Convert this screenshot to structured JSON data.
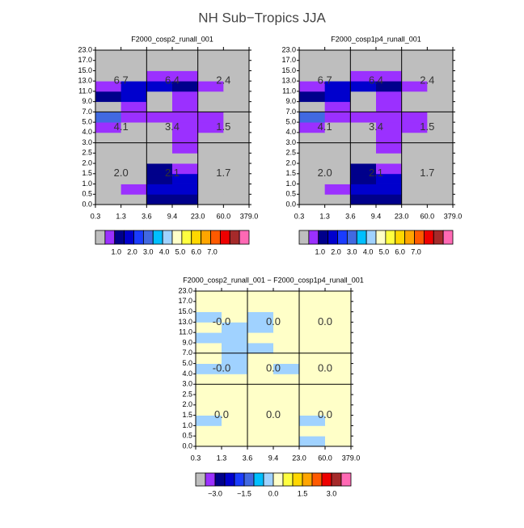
{
  "title": "NH Sub−Tropics JJA",
  "chart_data": [
    {
      "type": "heatmap",
      "title": "F2000_cosp2_runall_001",
      "x_edges": [
        "0.3",
        "1.3",
        "3.6",
        "9.4",
        "23.0",
        "60.0",
        "379.0"
      ],
      "y_edges": [
        "0.0",
        "0.5",
        "1.0",
        "1.5",
        "2.0",
        "2.5",
        "3.0",
        "4.0",
        "5.0",
        "7.0",
        "9.0",
        "11.0",
        "13.0",
        "15.0",
        "17.0",
        "23.0"
      ],
      "values": [
        [
          0.1,
          0.1,
          1.2,
          1.2,
          0.1,
          0.1
        ],
        [
          0.1,
          0.6,
          1.8,
          1.8,
          0.1,
          0.1
        ],
        [
          0.1,
          0.1,
          1.2,
          1.8,
          0.1,
          0.1
        ],
        [
          0.1,
          0.1,
          1.2,
          0.6,
          0.1,
          0.1
        ],
        [
          0.1,
          0.1,
          0.1,
          0.1,
          0.1,
          0.1
        ],
        [
          0.1,
          0.1,
          0.1,
          0.6,
          0.1,
          0.1
        ],
        [
          0.1,
          0.1,
          0.1,
          0.6,
          0.1,
          0.1
        ],
        [
          0.6,
          0.1,
          0.1,
          0.6,
          0.6,
          0.1
        ],
        [
          3.0,
          0.6,
          0.6,
          0.6,
          0.6,
          0.1
        ],
        [
          0.1,
          0.6,
          0.1,
          0.6,
          0.1,
          0.1
        ],
        [
          1.2,
          1.8,
          0.1,
          0.6,
          0.1,
          0.1
        ],
        [
          0.6,
          1.8,
          1.8,
          1.2,
          0.6,
          0.1
        ],
        [
          0.1,
          0.1,
          0.6,
          0.6,
          0.1,
          0.1
        ],
        [
          0.1,
          0.1,
          0.1,
          0.1,
          0.1,
          0.1
        ],
        [
          0.1,
          0.1,
          0.1,
          0.1,
          0.1,
          0.1
        ]
      ],
      "region_labels": [
        [
          "6.7",
          "6.4",
          "2.4"
        ],
        [
          "4.1",
          "3.4",
          "1.5"
        ],
        [
          "2.0",
          "2.1",
          "1.7"
        ]
      ],
      "colorbar": {
        "colors": [
          "#bebebe",
          "#9b30ff",
          "#00008b",
          "#0000cd",
          "#1a3cff",
          "#4169e1",
          "#00bfff",
          "#a0d2ff",
          "#ffffc8",
          "#ffff40",
          "#ffd700",
          "#ffa500",
          "#ff5a00",
          "#ee0000",
          "#a52a2a",
          "#ff69b4"
        ],
        "lim": [
          -0.3,
          9.3
        ],
        "ticks": [
          {
            "value": 1,
            "label": "1.0"
          },
          {
            "value": 2,
            "label": "2.0"
          },
          {
            "value": 3,
            "label": "3.0"
          },
          {
            "value": 4,
            "label": "4.0"
          },
          {
            "value": 5,
            "label": "5.0"
          },
          {
            "value": 6,
            "label": "6.0"
          },
          {
            "value": 7,
            "label": "7.0"
          }
        ]
      }
    },
    {
      "type": "heatmap",
      "title": "F2000_cosp1p4_runall_001",
      "x_edges": [
        "0.3",
        "1.3",
        "3.6",
        "9.4",
        "23.0",
        "60.0",
        "379.0"
      ],
      "y_edges": [
        "0.0",
        "0.5",
        "1.0",
        "1.5",
        "2.0",
        "2.5",
        "3.0",
        "4.0",
        "5.0",
        "7.0",
        "9.0",
        "11.0",
        "13.0",
        "15.0",
        "17.0",
        "23.0"
      ],
      "values": [
        [
          0.1,
          0.1,
          1.2,
          1.2,
          0.1,
          0.1
        ],
        [
          0.1,
          0.6,
          1.8,
          1.8,
          0.1,
          0.1
        ],
        [
          0.1,
          0.1,
          1.2,
          1.8,
          0.1,
          0.1
        ],
        [
          0.1,
          0.1,
          1.2,
          0.6,
          0.1,
          0.1
        ],
        [
          0.1,
          0.1,
          0.1,
          0.1,
          0.1,
          0.1
        ],
        [
          0.1,
          0.1,
          0.1,
          0.6,
          0.1,
          0.1
        ],
        [
          0.1,
          0.1,
          0.1,
          0.6,
          0.1,
          0.1
        ],
        [
          0.6,
          0.1,
          0.1,
          0.6,
          0.6,
          0.1
        ],
        [
          3.0,
          0.6,
          0.6,
          0.6,
          0.6,
          0.1
        ],
        [
          0.1,
          0.6,
          0.1,
          0.6,
          0.1,
          0.1
        ],
        [
          1.2,
          1.8,
          0.1,
          0.6,
          0.1,
          0.1
        ],
        [
          0.6,
          1.8,
          1.8,
          1.2,
          0.6,
          0.1
        ],
        [
          0.1,
          0.1,
          0.6,
          0.6,
          0.1,
          0.1
        ],
        [
          0.1,
          0.1,
          0.1,
          0.1,
          0.1,
          0.1
        ],
        [
          0.1,
          0.1,
          0.1,
          0.1,
          0.1,
          0.1
        ]
      ],
      "region_labels": [
        [
          "6.7",
          "6.4",
          "2.4"
        ],
        [
          "4.1",
          "3.4",
          "1.5"
        ],
        [
          "2.0",
          "2.1",
          "1.7"
        ]
      ],
      "colorbar": {
        "colors": [
          "#bebebe",
          "#9b30ff",
          "#00008b",
          "#0000cd",
          "#1a3cff",
          "#4169e1",
          "#00bfff",
          "#a0d2ff",
          "#ffffc8",
          "#ffff40",
          "#ffd700",
          "#ffa500",
          "#ff5a00",
          "#ee0000",
          "#a52a2a",
          "#ff69b4"
        ],
        "lim": [
          -0.3,
          9.3
        ],
        "ticks": [
          {
            "value": 1,
            "label": "1.0"
          },
          {
            "value": 2,
            "label": "2.0"
          },
          {
            "value": 3,
            "label": "3.0"
          },
          {
            "value": 4,
            "label": "4.0"
          },
          {
            "value": 5,
            "label": "5.0"
          },
          {
            "value": 6,
            "label": "6.0"
          },
          {
            "value": 7,
            "label": "7.0"
          }
        ]
      }
    },
    {
      "type": "heatmap",
      "title": "F2000_cosp2_runall_001 − F2000_cosp1p4_runall_001",
      "x_edges": [
        "0.3",
        "1.3",
        "3.6",
        "9.4",
        "23.0",
        "60.0",
        "379.0"
      ],
      "y_edges": [
        "0.0",
        "0.5",
        "1.0",
        "1.5",
        "2.0",
        "2.5",
        "3.0",
        "4.0",
        "5.0",
        "7.0",
        "9.0",
        "11.0",
        "13.0",
        "15.0",
        "17.0",
        "23.0"
      ],
      "values": [
        [
          0.01,
          0.01,
          0.01,
          0.01,
          -0.01,
          0.01
        ],
        [
          0.01,
          0.01,
          0.01,
          0.01,
          0.01,
          0.01
        ],
        [
          -0.01,
          0.01,
          0.01,
          0.01,
          -0.01,
          0.01
        ],
        [
          0.01,
          0.01,
          0.01,
          0.01,
          0.01,
          0.01
        ],
        [
          0.01,
          0.01,
          0.01,
          0.01,
          0.01,
          0.01
        ],
        [
          0.01,
          0.01,
          0.01,
          0.01,
          0.01,
          0.01
        ],
        [
          0.01,
          0.01,
          0.01,
          0.01,
          0.01,
          0.01
        ],
        [
          -0.01,
          -0.01,
          0.01,
          -0.01,
          0.01,
          0.01
        ],
        [
          0.01,
          -0.01,
          0.01,
          0.01,
          0.01,
          0.01
        ],
        [
          0.01,
          -0.01,
          -0.01,
          0.01,
          0.01,
          0.01
        ],
        [
          -0.01,
          -0.01,
          0.01,
          0.01,
          0.01,
          0.01
        ],
        [
          0.01,
          -0.01,
          -0.01,
          0.01,
          0.01,
          0.01
        ],
        [
          -0.01,
          0.01,
          -0.01,
          0.01,
          0.01,
          0.01
        ],
        [
          0.01,
          0.01,
          0.01,
          0.01,
          0.01,
          0.01
        ],
        [
          0.01,
          0.01,
          0.01,
          0.01,
          0.01,
          0.01
        ]
      ],
      "region_labels": [
        [
          "-0.0",
          "0.0",
          "0.0"
        ],
        [
          "-0.0",
          "0.0",
          "0.0"
        ],
        [
          "0.0",
          "0.0",
          "0.0"
        ]
      ],
      "colorbar": {
        "colors": [
          "#bebebe",
          "#9b30ff",
          "#00008b",
          "#0000cd",
          "#1a3cff",
          "#4169e1",
          "#00bfff",
          "#a0d2ff",
          "#ffffc8",
          "#ffff40",
          "#ffd700",
          "#ffa500",
          "#ff5a00",
          "#ee0000",
          "#a52a2a",
          "#ff69b4"
        ],
        "lim": [
          -4,
          4
        ],
        "ticks": [
          {
            "value": -3,
            "label": "−3.0"
          },
          {
            "value": -1.5,
            "label": "−1.5"
          },
          {
            "value": 0,
            "label": "0.0"
          },
          {
            "value": 1.5,
            "label": "1.5"
          },
          {
            "value": 3,
            "label": "3.0"
          }
        ]
      }
    }
  ]
}
